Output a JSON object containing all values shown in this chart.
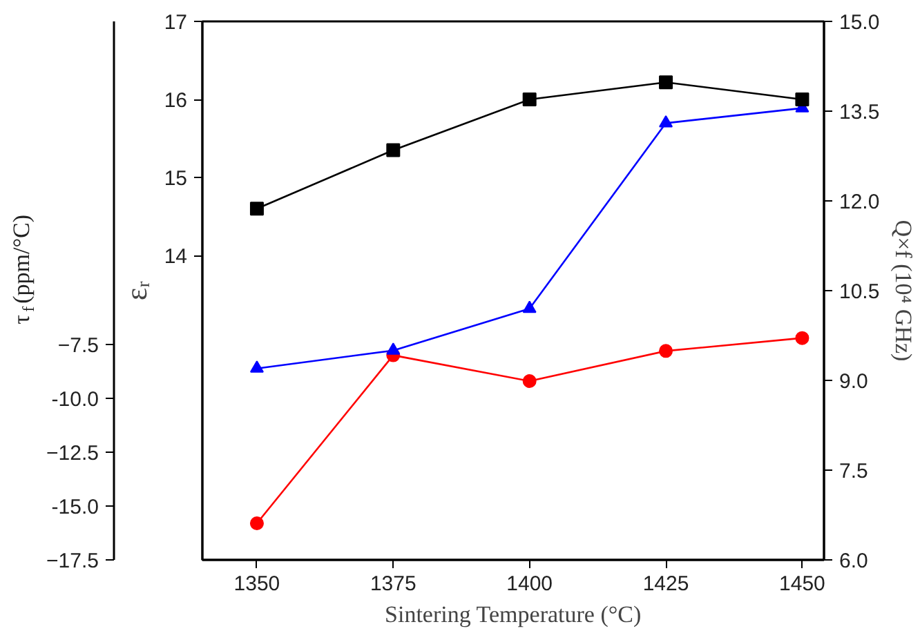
{
  "chart_data": {
    "type": "line",
    "xlabel": "Sintering Temperature (°C)",
    "ylabel": "εᵣ",
    "y2label": "Q×f (10⁴ GHz)",
    "y3label": "τ$_{f}$(ppm/°C)",
    "x": [
      1350,
      1375,
      1400,
      1425,
      1450
    ],
    "xlim": [
      1340,
      1454
    ],
    "xticks": [
      1350,
      1375,
      1400,
      1425,
      1450
    ],
    "ylim": [
      10.1,
      17
    ],
    "yticks": [
      14,
      15,
      16,
      17
    ],
    "y2lim": [
      6,
      15
    ],
    "y2ticks": [
      {
        "value": 6,
        "label": "6.0"
      },
      {
        "value": 7.5,
        "label": "7.5"
      },
      {
        "value": 9,
        "label": "9.0"
      },
      {
        "value": 10.5,
        "label": "10.5"
      },
      {
        "value": 12,
        "label": "12.0"
      },
      {
        "value": 13.5,
        "label": "13.5"
      },
      {
        "value": 15,
        "label": "15.0"
      }
    ],
    "y3lim": [
      -17.5,
      7.5
    ],
    "y3ticks": [
      -17.5,
      {
        "value": -15,
        "label": "-15.0"
      },
      -12.5,
      {
        "value": -10,
        "label": "-10.0"
      },
      -7.5
    ],
    "grid": false,
    "line_style": "solid",
    "series": [
      {
        "color": "#000000",
        "marker": "square",
        "axis": "y",
        "values": [
          14.6,
          15.35,
          16.0,
          16.22,
          16.0
        ]
      },
      {
        "color": "#0000ff",
        "marker": "triangle",
        "axis": "y2",
        "values": [
          9.2,
          9.5,
          10.2,
          13.3,
          13.55
        ]
      },
      {
        "color": "#ff0000",
        "marker": "circle",
        "axis": "y3",
        "values": [
          -15.8,
          -8.0,
          -9.2,
          -7.8,
          -7.2
        ]
      }
    ]
  }
}
